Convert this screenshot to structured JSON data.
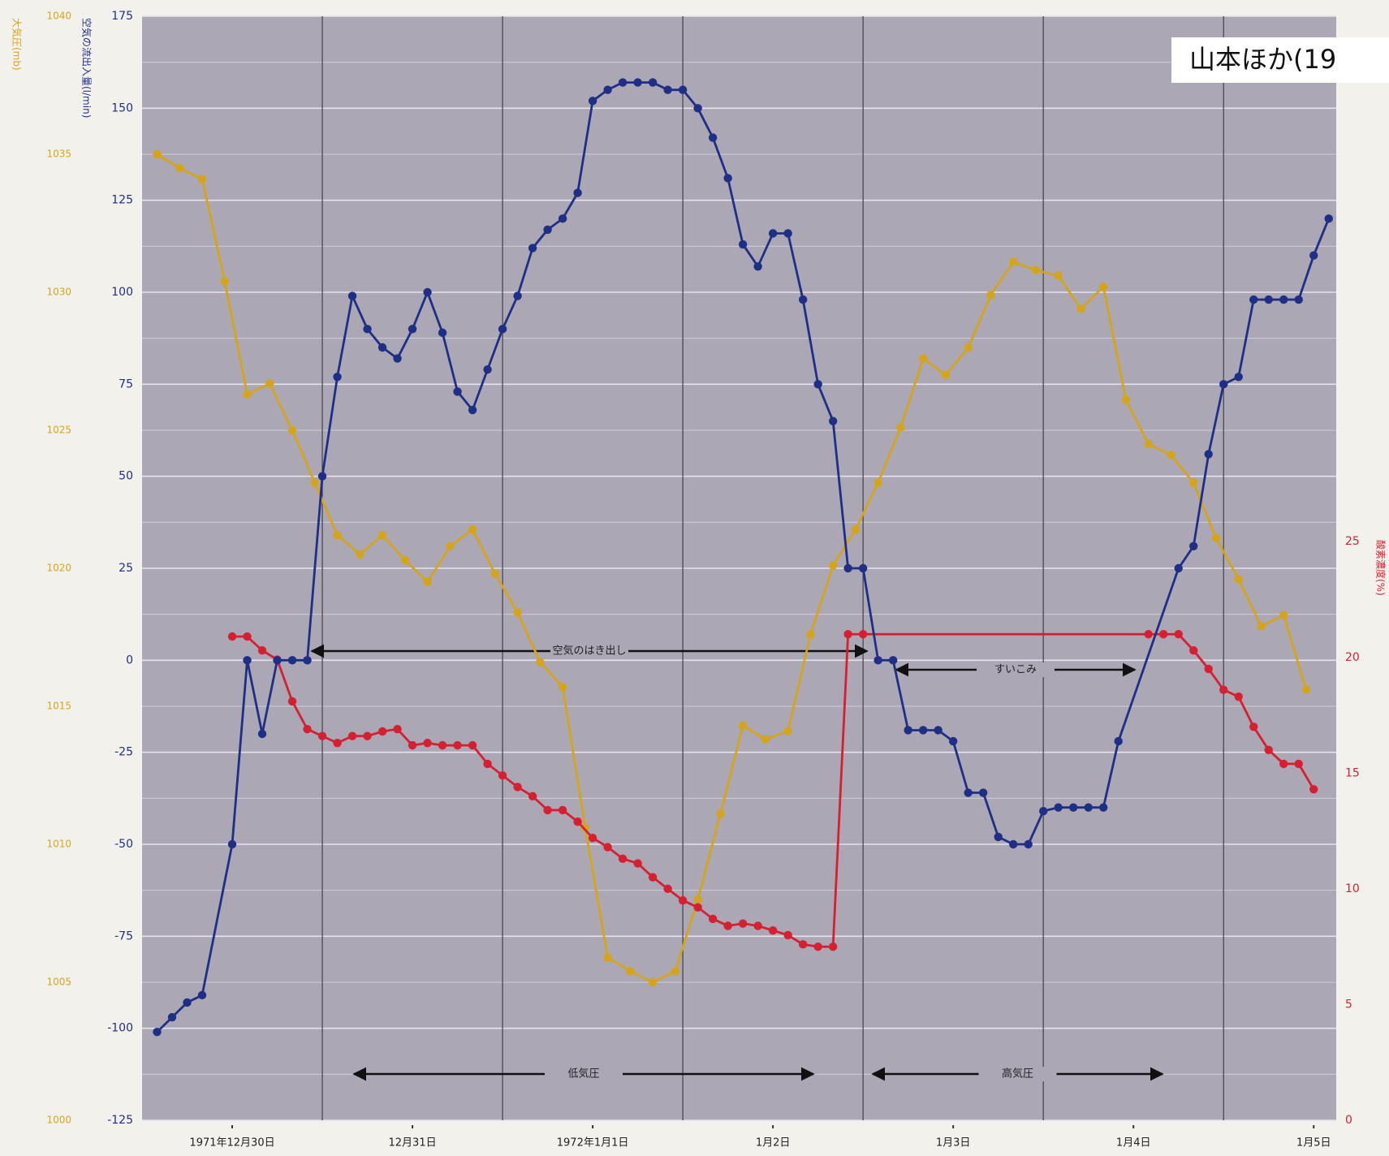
{
  "chart_data": {
    "type": "line",
    "citation": "山本ほか(19",
    "y_label": "空気の流出入量(l/min)",
    "y2_label": "酸素濃度(%)",
    "y3_label": "大気圧(mb)",
    "xlim": [
      0,
      159
    ],
    "xticks": [
      {
        "value": 12,
        "label": "1971年12月30日"
      },
      {
        "value": 36,
        "label": "12月31日"
      },
      {
        "value": 60,
        "label": "1972年1月1日"
      },
      {
        "value": 84,
        "label": "1月2日"
      },
      {
        "value": 108,
        "label": "1月3日"
      },
      {
        "value": 132,
        "label": "1月4日"
      },
      {
        "value": 156,
        "label": "1月5日"
      }
    ],
    "vlines": [
      24,
      48,
      72,
      96,
      120,
      144
    ],
    "ylim": [
      -125,
      175
    ],
    "yticks": [
      -125,
      -100,
      -75,
      -50,
      -25,
      0,
      25,
      50,
      75,
      100,
      125,
      150,
      175
    ],
    "y2lim": [
      0,
      47.7
    ],
    "y2ticks": [
      0,
      5,
      10,
      15,
      20,
      25
    ],
    "y3lim": [
      1000,
      1040
    ],
    "y3ticks": [
      1000,
      1005,
      1010,
      1015,
      1020,
      1025,
      1030,
      1035,
      1040
    ],
    "grid": true,
    "annotations": [
      "空気のはき出し",
      "すいこみ",
      "低気圧",
      "高気圧"
    ],
    "series": [
      {
        "name": "大気圧",
        "axis": "y3",
        "color": "#d4a51c",
        "x": [
          2,
          5,
          8,
          11,
          14,
          17,
          20,
          23,
          26,
          29,
          32,
          35,
          38,
          41,
          44,
          47,
          50,
          53,
          56,
          59,
          62,
          65,
          68,
          71,
          74,
          77,
          80,
          83,
          86,
          89,
          92,
          95,
          98,
          101,
          104,
          107,
          110,
          113,
          116,
          119,
          122,
          125,
          128,
          131,
          134,
          137,
          140,
          143,
          146,
          149,
          152,
          155
        ],
        "values": [
          1035.0,
          1034.5,
          1034.1,
          1030.4,
          1026.3,
          1026.7,
          1025.0,
          1023.1,
          1021.2,
          1020.5,
          1021.2,
          1020.3,
          1019.5,
          1020.8,
          1021.4,
          1019.8,
          1018.4,
          1016.6,
          1015.7,
          1010.6,
          1005.9,
          1005.4,
          1005.0,
          1005.4,
          1008.0,
          1011.1,
          1014.3,
          1013.8,
          1014.1,
          1017.6,
          1020.1,
          1021.4,
          1023.1,
          1025.1,
          1027.6,
          1027.0,
          1028.0,
          1029.9,
          1031.1,
          1030.8,
          1030.6,
          1029.4,
          1030.2,
          1026.1,
          1024.5,
          1024.1,
          1023.1,
          1021.1,
          1019.6,
          1017.9,
          1018.3,
          1015.6
        ]
      },
      {
        "name": "酸素濃度",
        "axis": "y2",
        "color": "#d42030",
        "x": [
          12,
          14,
          16,
          18,
          20,
          22,
          24,
          26,
          28,
          30,
          32,
          34,
          36,
          38,
          40,
          42,
          44,
          46,
          48,
          50,
          52,
          54,
          56,
          58,
          60,
          62,
          64,
          66,
          68,
          70,
          72,
          74,
          76,
          78,
          80,
          82,
          84,
          86,
          88,
          90,
          92,
          94,
          96,
          134,
          136,
          138,
          140,
          142,
          144,
          146,
          148,
          150,
          152,
          154,
          156
        ],
        "values": [
          20.9,
          20.9,
          20.3,
          19.9,
          18.1,
          16.9,
          16.6,
          16.3,
          16.6,
          16.6,
          16.8,
          16.9,
          16.2,
          16.3,
          16.2,
          16.2,
          16.2,
          15.4,
          14.9,
          14.4,
          14.0,
          13.4,
          13.4,
          12.9,
          12.2,
          11.8,
          11.3,
          11.1,
          10.5,
          10.0,
          9.5,
          9.2,
          8.7,
          8.4,
          8.5,
          8.4,
          8.2,
          8.0,
          7.6,
          7.5,
          7.5,
          21.0,
          21.0,
          21.0,
          21.0,
          21.0,
          20.3,
          19.5,
          18.6,
          18.3,
          17.0,
          16.0,
          15.4,
          15.4,
          14.3
        ]
      },
      {
        "name": "空気の流出入量",
        "axis": "y",
        "color": "#1f2f86",
        "x": [
          2,
          4,
          6,
          8,
          12,
          14,
          16,
          18,
          20,
          22,
          24,
          26,
          28,
          30,
          32,
          34,
          36,
          38,
          40,
          42,
          44,
          46,
          48,
          50,
          52,
          54,
          56,
          58,
          60,
          62,
          64,
          66,
          68,
          70,
          72,
          74,
          76,
          78,
          80,
          82,
          84,
          86,
          88,
          90,
          92,
          94,
          96,
          98,
          100,
          102,
          104,
          106,
          108,
          110,
          112,
          114,
          116,
          118,
          120,
          122,
          124,
          126,
          128,
          130,
          138,
          140,
          142,
          144,
          146,
          148,
          150,
          152,
          154,
          156,
          158
        ],
        "values": [
          -101,
          -97,
          -93,
          -91,
          -50,
          0,
          -20,
          0,
          0,
          0,
          50,
          77,
          99,
          90,
          85,
          82,
          90,
          100,
          89,
          73,
          68,
          79,
          90,
          99,
          112,
          117,
          120,
          127,
          152,
          155,
          157,
          157,
          157,
          155,
          155,
          150,
          142,
          131,
          113,
          107,
          116,
          116,
          98,
          75,
          65,
          25,
          25,
          0,
          0,
          -19,
          -19,
          -19,
          -22,
          -36,
          -36,
          -48,
          -50,
          -50,
          -41,
          -40,
          -40,
          -40,
          -40,
          -22,
          25,
          31,
          56,
          75,
          77,
          98,
          98,
          98,
          98,
          110,
          120
        ]
      }
    ]
  }
}
